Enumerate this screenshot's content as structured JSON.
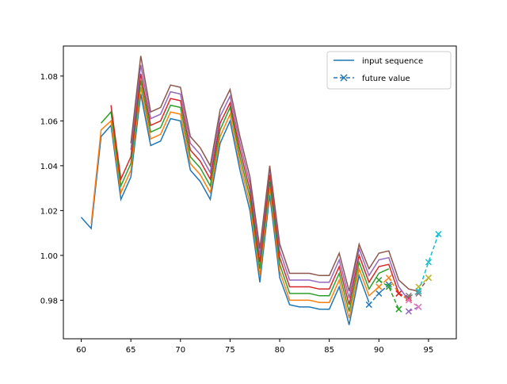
{
  "chart_data": {
    "type": "line",
    "title": "",
    "xlabel": "",
    "ylabel": "",
    "xlim": [
      58.2,
      97.8
    ],
    "ylim": [
      0.9628,
      1.0934
    ],
    "xticks": [
      60,
      65,
      70,
      75,
      80,
      85,
      90,
      95
    ],
    "yticks": [
      0.98,
      1.0,
      1.02,
      1.04,
      1.06,
      1.08
    ],
    "ytick_labels": [
      "0.98",
      "1.00",
      "1.02",
      "1.04",
      "1.06",
      "1.08"
    ],
    "grid": false,
    "legend": {
      "position": "top-right",
      "entries": [
        {
          "label": "input sequence",
          "style": "solid",
          "color": "#1f77b4"
        },
        {
          "label": "future value",
          "style": "dashed-x",
          "color": "#1f77b4"
        }
      ]
    },
    "series": [
      {
        "color": "#1f77b4",
        "input": {
          "x": [
            60,
            61,
            62,
            63,
            64,
            65,
            66,
            67,
            68,
            69,
            70,
            71,
            72,
            73,
            74,
            75,
            76,
            77,
            78,
            79,
            80,
            81,
            82,
            83,
            84,
            85,
            86,
            87,
            88,
            89
          ],
          "y": [
            1.017,
            1.012,
            1.053,
            1.058,
            1.025,
            1.035,
            1.072,
            1.049,
            1.051,
            1.061,
            1.06,
            1.038,
            1.033,
            1.025,
            1.05,
            1.06,
            1.038,
            1.02,
            0.988,
            1.027,
            0.99,
            0.978,
            0.977,
            0.977,
            0.976,
            0.976,
            0.986,
            0.969,
            0.991,
            0.979
          ]
        },
        "future": {
          "x": [
            89,
            90,
            91
          ],
          "y": [
            0.978,
            0.983,
            0.987
          ]
        }
      },
      {
        "color": "#ff7f0e",
        "input": {
          "x": [
            61,
            62,
            63,
            64,
            65,
            66,
            67,
            68,
            69,
            70,
            71,
            72,
            73,
            74,
            75,
            76,
            77,
            78,
            79,
            80,
            81,
            82,
            83,
            84,
            85,
            86,
            87,
            88,
            89,
            90
          ],
          "y": [
            1.014,
            1.056,
            1.06,
            1.028,
            1.038,
            1.075,
            1.052,
            1.054,
            1.064,
            1.063,
            1.041,
            1.036,
            1.028,
            1.053,
            1.063,
            1.041,
            1.023,
            0.991,
            1.03,
            0.993,
            0.98,
            0.98,
            0.98,
            0.979,
            0.979,
            0.989,
            0.972,
            0.994,
            0.982,
            0.986
          ]
        },
        "future": {
          "x": [
            90,
            91,
            92,
            93
          ],
          "y": [
            0.986,
            0.99,
            0.983,
            0.98
          ]
        }
      },
      {
        "color": "#2ca02c",
        "input": {
          "x": [
            62,
            63,
            64,
            65,
            66,
            67,
            68,
            69,
            70,
            71,
            72,
            73,
            74,
            75,
            76,
            77,
            78,
            79,
            80,
            81,
            82,
            83,
            84,
            85,
            86,
            87,
            88,
            89,
            90,
            91
          ],
          "y": [
            1.059,
            1.064,
            1.031,
            1.041,
            1.078,
            1.055,
            1.057,
            1.067,
            1.066,
            1.044,
            1.039,
            1.031,
            1.056,
            1.066,
            1.044,
            1.026,
            0.994,
            1.033,
            0.996,
            0.983,
            0.983,
            0.983,
            0.982,
            0.982,
            0.992,
            0.975,
            0.997,
            0.985,
            0.992,
            0.994
          ]
        },
        "future": {
          "x": [
            90,
            91,
            92
          ],
          "y": [
            0.989,
            0.986,
            0.976
          ]
        }
      },
      {
        "color": "#d62728",
        "input": {
          "x": [
            63,
            64,
            65,
            66,
            67,
            68,
            69,
            70,
            71,
            72,
            73,
            74,
            75,
            76,
            77,
            78,
            79,
            80,
            81,
            82,
            83,
            84,
            85,
            86,
            87,
            88,
            89,
            90,
            91,
            92
          ],
          "y": [
            1.067,
            1.034,
            1.044,
            1.081,
            1.058,
            1.06,
            1.07,
            1.069,
            1.047,
            1.042,
            1.034,
            1.059,
            1.068,
            1.047,
            1.029,
            0.997,
            1.036,
            0.999,
            0.986,
            0.986,
            0.986,
            0.985,
            0.985,
            0.995,
            0.978,
            1.0,
            0.988,
            0.995,
            0.996,
            0.983
          ]
        },
        "future": {
          "x": [
            92,
            93
          ],
          "y": [
            0.983,
            0.981
          ]
        }
      },
      {
        "color": "#9467bd",
        "input": {
          "x": [
            65,
            66,
            67,
            68,
            69,
            70,
            71,
            72,
            73,
            74,
            75,
            76,
            77,
            78,
            79,
            80,
            81,
            82,
            83,
            84,
            85,
            86,
            87,
            88,
            89,
            90,
            91,
            92,
            93
          ],
          "y": [
            1.047,
            1.085,
            1.061,
            1.063,
            1.073,
            1.072,
            1.05,
            1.045,
            1.037,
            1.062,
            1.071,
            1.05,
            1.032,
            1.0,
            1.039,
            1.002,
            0.989,
            0.989,
            0.989,
            0.988,
            0.988,
            0.998,
            0.981,
            1.003,
            0.991,
            0.998,
            0.999,
            0.986,
            0.98
          ]
        },
        "future": {
          "x": [
            93,
            94
          ],
          "y": [
            0.975,
            0.977
          ]
        }
      },
      {
        "color": "#8c564b",
        "input": {
          "x": [
            65,
            66,
            67,
            68,
            69,
            70,
            71,
            72,
            73,
            74,
            75,
            76,
            77,
            78,
            79,
            80,
            81,
            82,
            83,
            84,
            85,
            86,
            87,
            88,
            89,
            90,
            91,
            92,
            93,
            94
          ],
          "y": [
            1.05,
            1.089,
            1.064,
            1.066,
            1.076,
            1.075,
            1.053,
            1.048,
            1.04,
            1.065,
            1.074,
            1.053,
            1.035,
            1.003,
            1.04,
            1.005,
            0.992,
            0.992,
            0.992,
            0.991,
            0.991,
            1.001,
            0.984,
            1.005,
            0.994,
            1.001,
            1.002,
            0.989,
            0.985,
            0.984
          ]
        },
        "future": {
          "x": [
            94,
            95
          ],
          "y": [
            0.984,
            0.99
          ]
        }
      },
      {
        "color": "#e377c2",
        "input": {
          "x": [],
          "y": []
        },
        "future": {
          "x": [
            93,
            94
          ],
          "y": [
            0.98,
            0.977
          ]
        }
      },
      {
        "color": "#7f7f7f",
        "input": {
          "x": [],
          "y": []
        },
        "future": {
          "x": [
            93,
            94
          ],
          "y": [
            0.982,
            0.983
          ]
        }
      },
      {
        "color": "#bcbd22",
        "input": {
          "x": [],
          "y": []
        },
        "future": {
          "x": [
            94,
            95
          ],
          "y": [
            0.986,
            0.99
          ]
        }
      },
      {
        "color": "#17becf",
        "input": {
          "x": [],
          "y": []
        },
        "future": {
          "x": [
            94,
            95,
            96
          ],
          "y": [
            0.984,
            0.997,
            1.0095
          ]
        }
      }
    ]
  }
}
